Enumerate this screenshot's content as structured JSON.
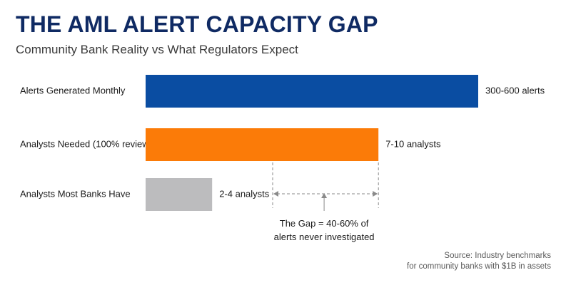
{
  "title": "THE AML ALERT CAPACITY GAP",
  "subtitle": "Community Bank Reality vs What Regulators Expect",
  "chart_data": {
    "type": "bar",
    "orientation": "horizontal",
    "categories": [
      "Alerts Generated Monthly",
      "Analysts Needed (100% review)",
      "Analysts Most Banks Have"
    ],
    "values": [
      100,
      70,
      20
    ],
    "value_labels": [
      "300-600 alerts",
      "7-10 analysts",
      "2-4 analysts"
    ],
    "colors": [
      "#0a4da2",
      "#fb7b08",
      "#bcbcbe"
    ],
    "xlim": [
      0,
      100
    ],
    "grid": false,
    "annotation": {
      "lines": [
        "The Gap = 40-60% of",
        "alerts never investigated"
      ],
      "spans_from_category": "Analysts Most Banks Have",
      "spans_to_category": "Analysts Needed (100% review)"
    }
  },
  "source": {
    "line1": "Source: Industry benchmarks",
    "line2": "for community banks with $1B in assets"
  }
}
